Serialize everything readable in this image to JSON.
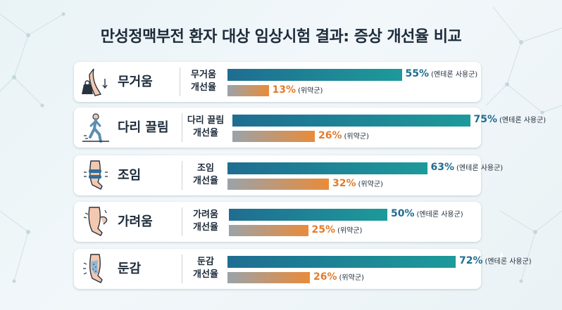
{
  "chart_data": {
    "type": "bar",
    "title": "만성정맥부전 환자 대상 임상시험 결과: 증상 개선율 비교",
    "categories": [
      "무거움",
      "다리 끌림",
      "조임",
      "가려움",
      "둔감"
    ],
    "sublabels": [
      [
        "무거움",
        "개선율"
      ],
      [
        "다리 끌림",
        "개선율"
      ],
      [
        "조임",
        "개선율"
      ],
      [
        "가려움",
        "개선율"
      ],
      [
        "둔감",
        "개선율"
      ]
    ],
    "series": [
      {
        "name": "(엔테론 사용군)",
        "values": [
          55,
          75,
          63,
          50,
          72
        ],
        "color": "#1f6d91"
      },
      {
        "name": "(위약군)",
        "values": [
          13,
          26,
          32,
          25,
          26
        ],
        "color": "#e37b2b"
      }
    ],
    "value_suffix": "%",
    "icons": [
      "heavy-weight-leg-icon",
      "dragging-leg-walker-icon",
      "tight-calf-icon",
      "itchy-leg-icon",
      "numb-leg-icon"
    ]
  }
}
